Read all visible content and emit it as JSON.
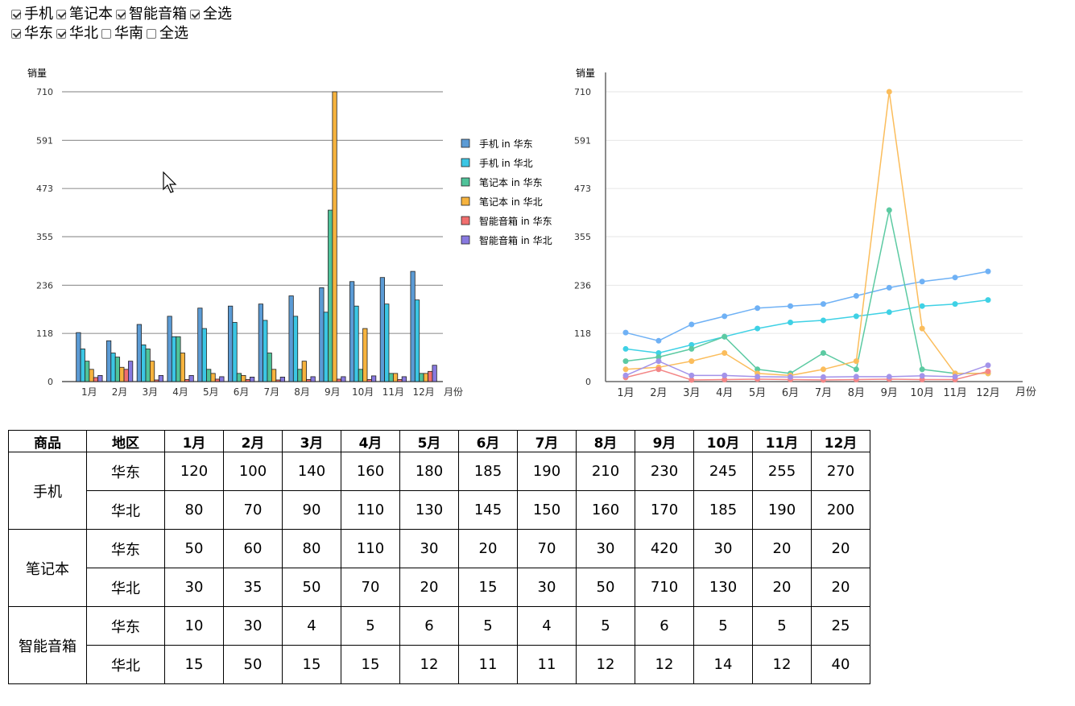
{
  "filters": {
    "products": [
      {
        "label": "手机",
        "checked": true
      },
      {
        "label": "笔记本",
        "checked": true
      },
      {
        "label": "智能音箱",
        "checked": true
      },
      {
        "label": "全选",
        "checked": true
      }
    ],
    "regions": [
      {
        "label": "华东",
        "checked": true
      },
      {
        "label": "华北",
        "checked": true
      },
      {
        "label": "华南",
        "checked": false
      },
      {
        "label": "全选",
        "checked": false
      }
    ]
  },
  "chart_data": [
    {
      "type": "bar",
      "ylabel": "销量",
      "xlabel": "月份",
      "yticks": [
        0,
        118,
        236,
        355,
        473,
        591,
        710
      ],
      "ylim": [
        0,
        710
      ],
      "categories": [
        "1月",
        "2月",
        "3月",
        "4月",
        "5月",
        "6月",
        "7月",
        "8月",
        "9月",
        "10月",
        "11月",
        "12月"
      ],
      "legend_position": "right",
      "series": [
        {
          "name": "手机 in 华东",
          "color": "#5b9bd5",
          "values": [
            120,
            100,
            140,
            160,
            180,
            185,
            190,
            210,
            230,
            245,
            255,
            270
          ]
        },
        {
          "name": "手机 in 华北",
          "color": "#3bc6e4",
          "values": [
            80,
            70,
            90,
            110,
            130,
            145,
            150,
            160,
            170,
            185,
            190,
            200
          ]
        },
        {
          "name": "笔记本 in 华东",
          "color": "#4fc39a",
          "values": [
            50,
            60,
            80,
            110,
            30,
            20,
            70,
            30,
            420,
            30,
            20,
            20
          ]
        },
        {
          "name": "笔记本 in 华北",
          "color": "#f6b33e",
          "values": [
            30,
            35,
            50,
            70,
            20,
            15,
            30,
            50,
            710,
            130,
            20,
            20
          ]
        },
        {
          "name": "智能音箱 in 华东",
          "color": "#f16e6e",
          "values": [
            10,
            30,
            4,
            5,
            6,
            5,
            4,
            5,
            6,
            5,
            5,
            25
          ]
        },
        {
          "name": "智能音箱 in 华北",
          "color": "#8879e0",
          "values": [
            15,
            50,
            15,
            15,
            12,
            11,
            11,
            12,
            12,
            14,
            12,
            40
          ]
        }
      ]
    },
    {
      "type": "line",
      "ylabel": "销量",
      "xlabel": "月份",
      "yticks": [
        0,
        118,
        236,
        355,
        473,
        591,
        710
      ],
      "ylim": [
        0,
        710
      ],
      "categories": [
        "1月",
        "2月",
        "3月",
        "4月",
        "5月",
        "6月",
        "7月",
        "8月",
        "9月",
        "10月",
        "11月",
        "12月"
      ],
      "series": [
        {
          "color": "#6fb1f5",
          "values": [
            120,
            100,
            140,
            160,
            180,
            185,
            190,
            210,
            230,
            245,
            255,
            270
          ]
        },
        {
          "color": "#3fd1e5",
          "values": [
            80,
            70,
            90,
            110,
            130,
            145,
            150,
            160,
            170,
            185,
            190,
            200
          ]
        },
        {
          "color": "#5ccaa2",
          "values": [
            50,
            60,
            80,
            110,
            30,
            20,
            70,
            30,
            420,
            30,
            20,
            20
          ]
        },
        {
          "color": "#fbbd5c",
          "values": [
            30,
            35,
            50,
            70,
            20,
            15,
            30,
            50,
            710,
            130,
            20,
            20
          ]
        },
        {
          "color": "#f38686",
          "values": [
            10,
            30,
            4,
            5,
            6,
            5,
            4,
            5,
            6,
            5,
            5,
            25
          ]
        },
        {
          "color": "#a393ea",
          "values": [
            15,
            50,
            15,
            15,
            12,
            11,
            11,
            12,
            12,
            14,
            12,
            40
          ]
        }
      ]
    }
  ],
  "table": {
    "headers": [
      "商品",
      "地区",
      "1月",
      "2月",
      "3月",
      "4月",
      "5月",
      "6月",
      "7月",
      "8月",
      "9月",
      "10月",
      "11月",
      "12月"
    ],
    "groups": [
      {
        "product": "手机",
        "rows": [
          {
            "region": "华东",
            "values": [
              120,
              100,
              140,
              160,
              180,
              185,
              190,
              210,
              230,
              245,
              255,
              270
            ]
          },
          {
            "region": "华北",
            "values": [
              80,
              70,
              90,
              110,
              130,
              145,
              150,
              160,
              170,
              185,
              190,
              200
            ]
          }
        ]
      },
      {
        "product": "笔记本",
        "rows": [
          {
            "region": "华东",
            "values": [
              50,
              60,
              80,
              110,
              30,
              20,
              70,
              30,
              420,
              30,
              20,
              20
            ]
          },
          {
            "region": "华北",
            "values": [
              30,
              35,
              50,
              70,
              20,
              15,
              30,
              50,
              710,
              130,
              20,
              20
            ]
          }
        ]
      },
      {
        "product": "智能音箱",
        "rows": [
          {
            "region": "华东",
            "values": [
              10,
              30,
              4,
              5,
              6,
              5,
              4,
              5,
              6,
              5,
              5,
              25
            ]
          },
          {
            "region": "华北",
            "values": [
              15,
              50,
              15,
              15,
              12,
              11,
              11,
              12,
              12,
              14,
              12,
              40
            ]
          }
        ]
      }
    ]
  }
}
